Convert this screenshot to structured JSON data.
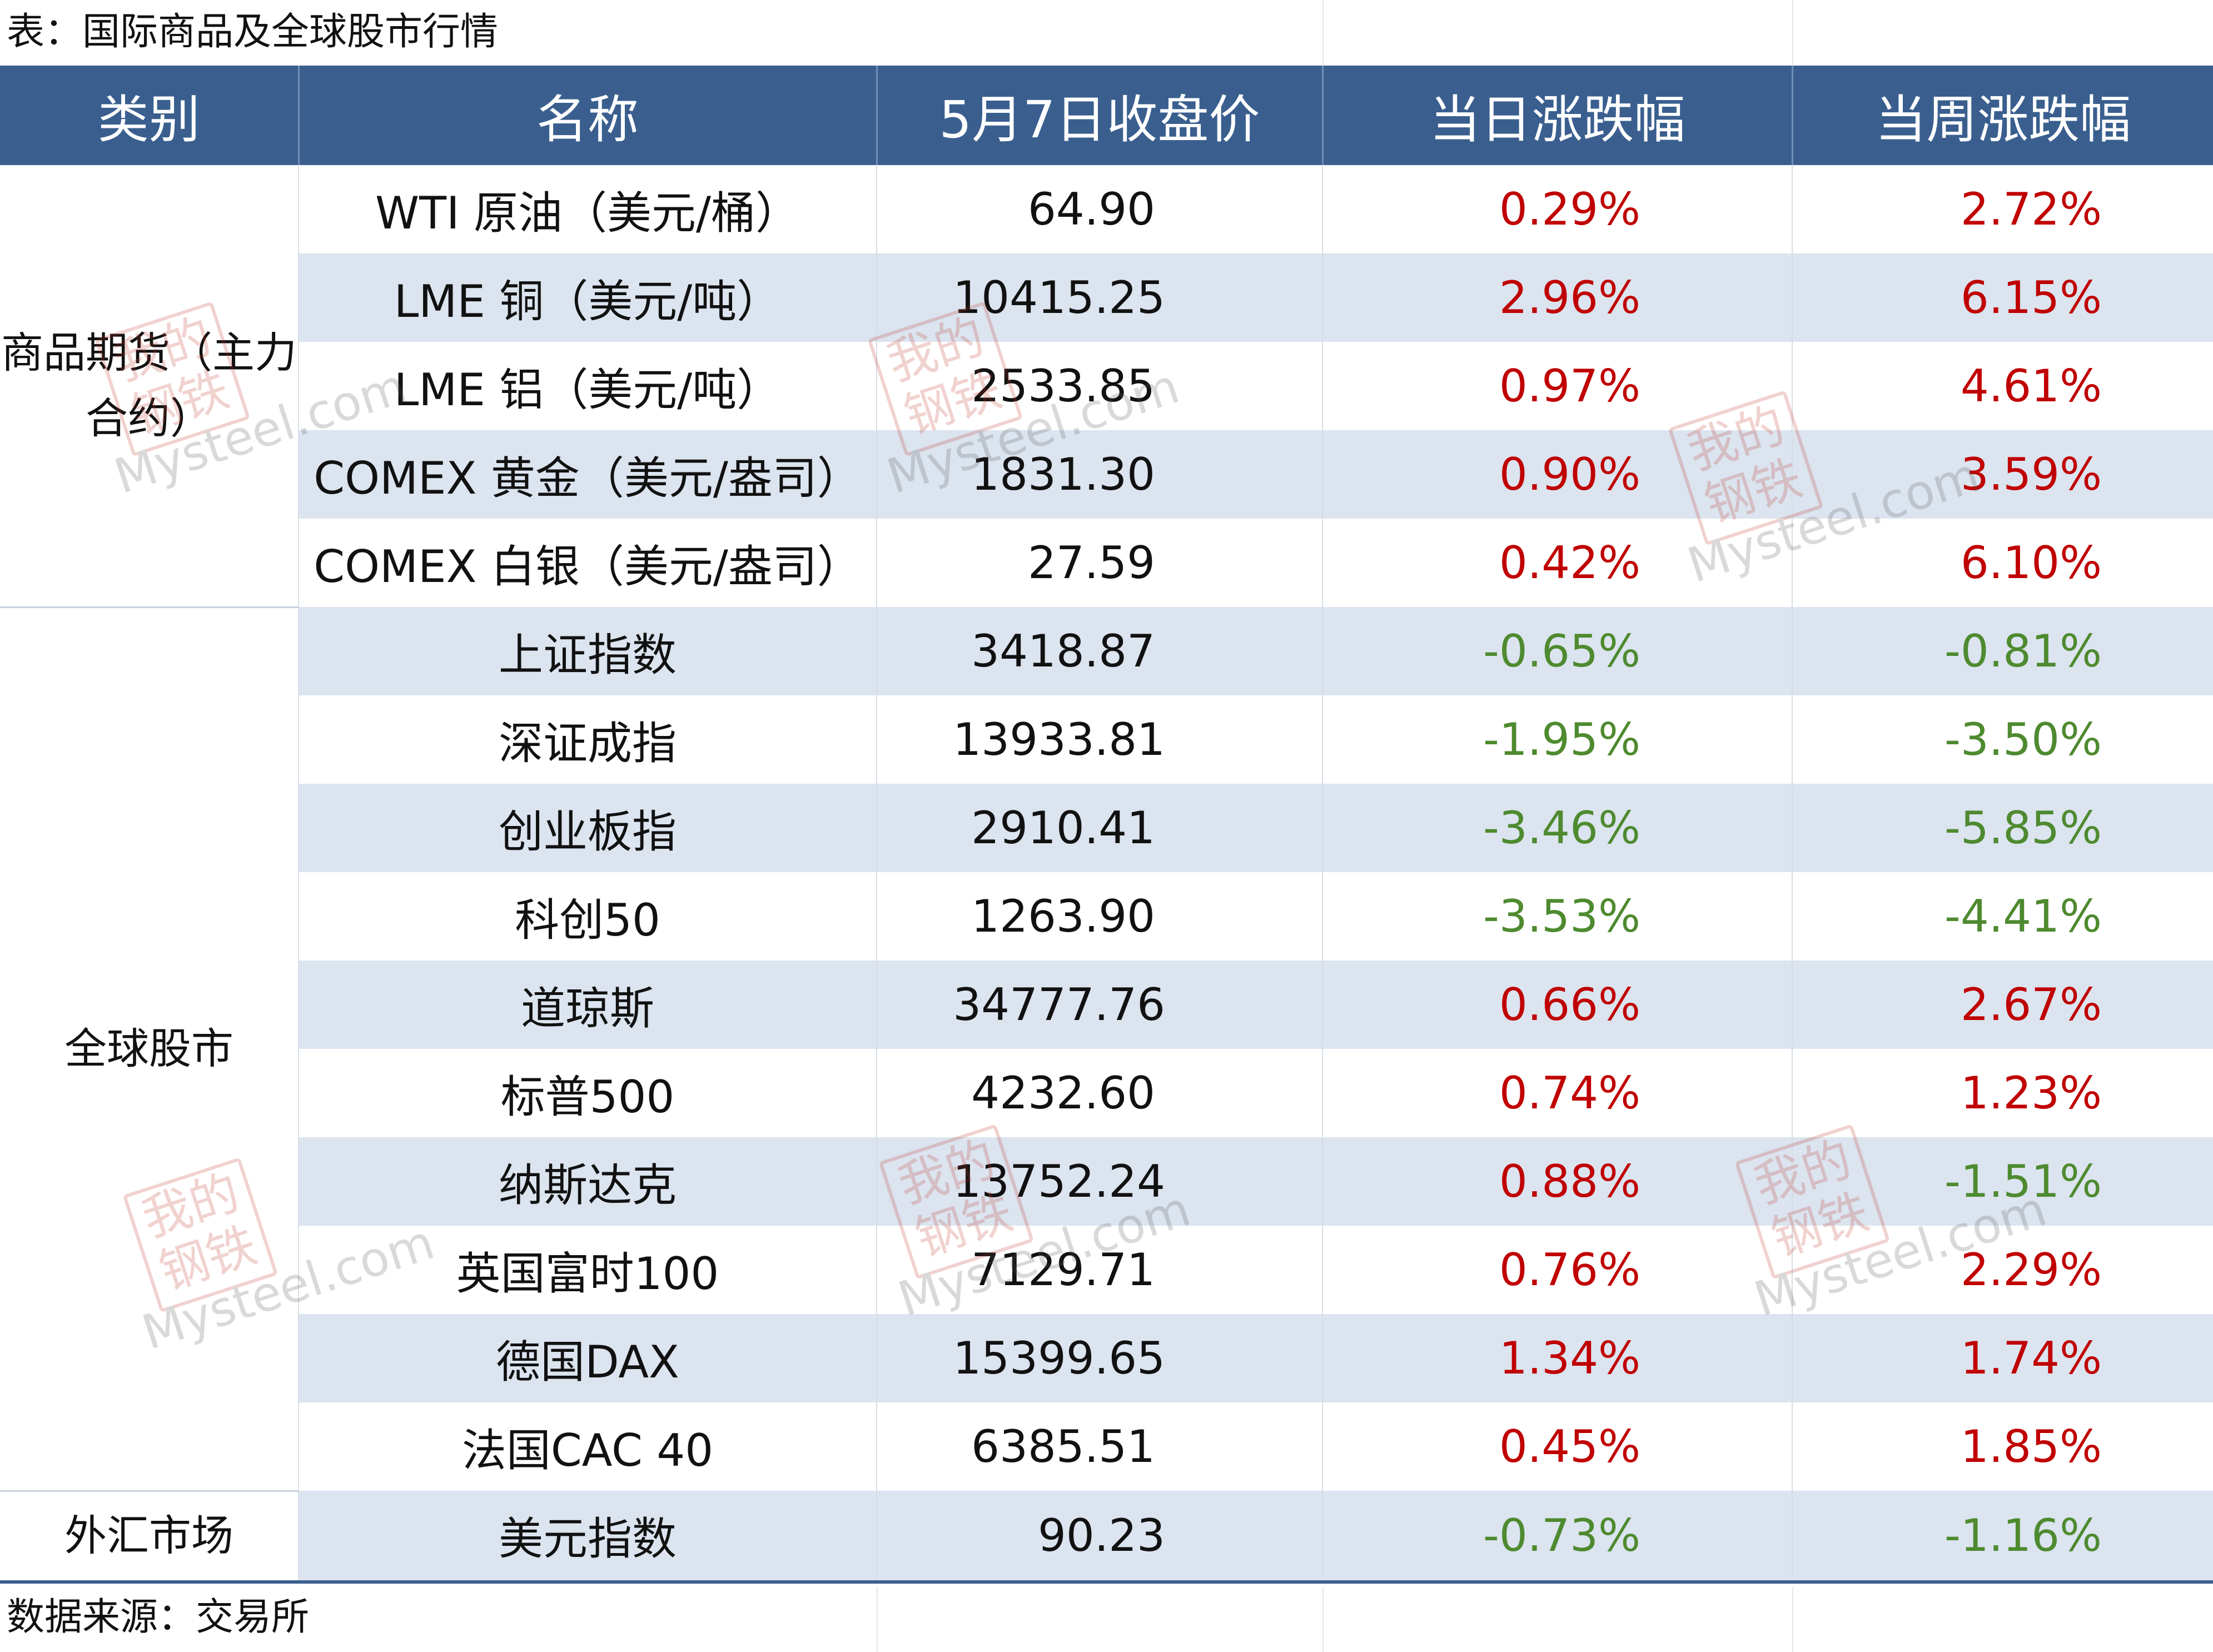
{
  "caption": "表：国际商品及全球股市行情",
  "footer": "数据来源：交易所",
  "columns": [
    "类别",
    "名称",
    "5月7日收盘价",
    "当日涨跌幅",
    "当周涨跌幅"
  ],
  "categories": {
    "commodities": "商品期货（主力合约）",
    "stocks": "全球股市",
    "fx": "外汇市场"
  },
  "rows": [
    {
      "name": "WTI 原油（美元/桶）",
      "price": "64.90",
      "day": "0.29%",
      "week": "2.72%"
    },
    {
      "name": "LME 铜（美元/吨）",
      "price": "10415.25",
      "day": "2.96%",
      "week": "6.15%"
    },
    {
      "name": "LME 铝（美元/吨）",
      "price": "2533.85",
      "day": "0.97%",
      "week": "4.61%"
    },
    {
      "name": "COMEX 黄金（美元/盎司）",
      "price": "1831.30",
      "day": "0.90%",
      "week": "3.59%"
    },
    {
      "name": "COMEX 白银（美元/盎司）",
      "price": "27.59",
      "day": "0.42%",
      "week": "6.10%"
    },
    {
      "name": "上证指数",
      "price": "3418.87",
      "day": "-0.65%",
      "week": "-0.81%"
    },
    {
      "name": "深证成指",
      "price": "13933.81",
      "day": "-1.95%",
      "week": "-3.50%"
    },
    {
      "name": "创业板指",
      "price": "2910.41",
      "day": "-3.46%",
      "week": "-5.85%"
    },
    {
      "name": "科创50",
      "price": "1263.90",
      "day": "-3.53%",
      "week": "-4.41%"
    },
    {
      "name": "道琼斯",
      "price": "34777.76",
      "day": "0.66%",
      "week": "2.67%"
    },
    {
      "name": "标普500",
      "price": "4232.60",
      "day": "0.74%",
      "week": "1.23%"
    },
    {
      "name": "纳斯达克",
      "price": "13752.24",
      "day": "0.88%",
      "week": "-1.51%"
    },
    {
      "name": "英国富时100",
      "price": "7129.71",
      "day": "0.76%",
      "week": "2.29%"
    },
    {
      "name": "德国DAX",
      "price": "15399.65",
      "day": "1.34%",
      "week": "1.74%"
    },
    {
      "name": "法国CAC 40",
      "price": "6385.51",
      "day": "0.45%",
      "week": "1.85%"
    },
    {
      "name": "美元指数",
      "price": "90.23",
      "day": "-0.73%",
      "week": "-1.16%"
    }
  ],
  "watermark": {
    "seal": "我的钢铁",
    "text": "Mysteel.com"
  },
  "colors": {
    "header_bg": "#3a5f8f",
    "stripe": "#dbe4ef",
    "up": "#c00000",
    "down": "#4e8a2f"
  }
}
